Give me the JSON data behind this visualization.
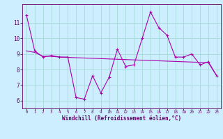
{
  "x": [
    0,
    1,
    2,
    3,
    4,
    5,
    6,
    7,
    8,
    9,
    10,
    11,
    12,
    13,
    14,
    15,
    16,
    17,
    18,
    19,
    20,
    21,
    22,
    23
  ],
  "line1": [
    11.5,
    9.2,
    8.8,
    8.9,
    8.8,
    8.8,
    6.2,
    6.1,
    7.6,
    6.5,
    7.5,
    9.3,
    8.2,
    8.3,
    10.0,
    11.7,
    10.7,
    10.2,
    8.8,
    8.8,
    9.0,
    8.3,
    8.5,
    7.6
  ],
  "line2": [
    9.2,
    9.1,
    8.85,
    8.85,
    8.8,
    8.78,
    8.76,
    8.74,
    8.72,
    8.7,
    8.68,
    8.66,
    8.64,
    8.62,
    8.6,
    8.58,
    8.56,
    8.54,
    8.52,
    8.5,
    8.48,
    8.46,
    8.44,
    7.6
  ],
  "background_color": "#cceeff",
  "grid_color": "#aadddd",
  "line_color": "#aa00aa",
  "xlabel": "Windchill (Refroidissement éolien,°C)",
  "ylim": [
    5.5,
    12.2
  ],
  "xlim": [
    -0.5,
    23.5
  ],
  "yticks": [
    6,
    7,
    8,
    9,
    10,
    11
  ],
  "xticks": [
    0,
    1,
    2,
    3,
    4,
    5,
    6,
    7,
    8,
    9,
    10,
    11,
    12,
    13,
    14,
    15,
    16,
    17,
    18,
    19,
    20,
    21,
    22,
    23
  ]
}
